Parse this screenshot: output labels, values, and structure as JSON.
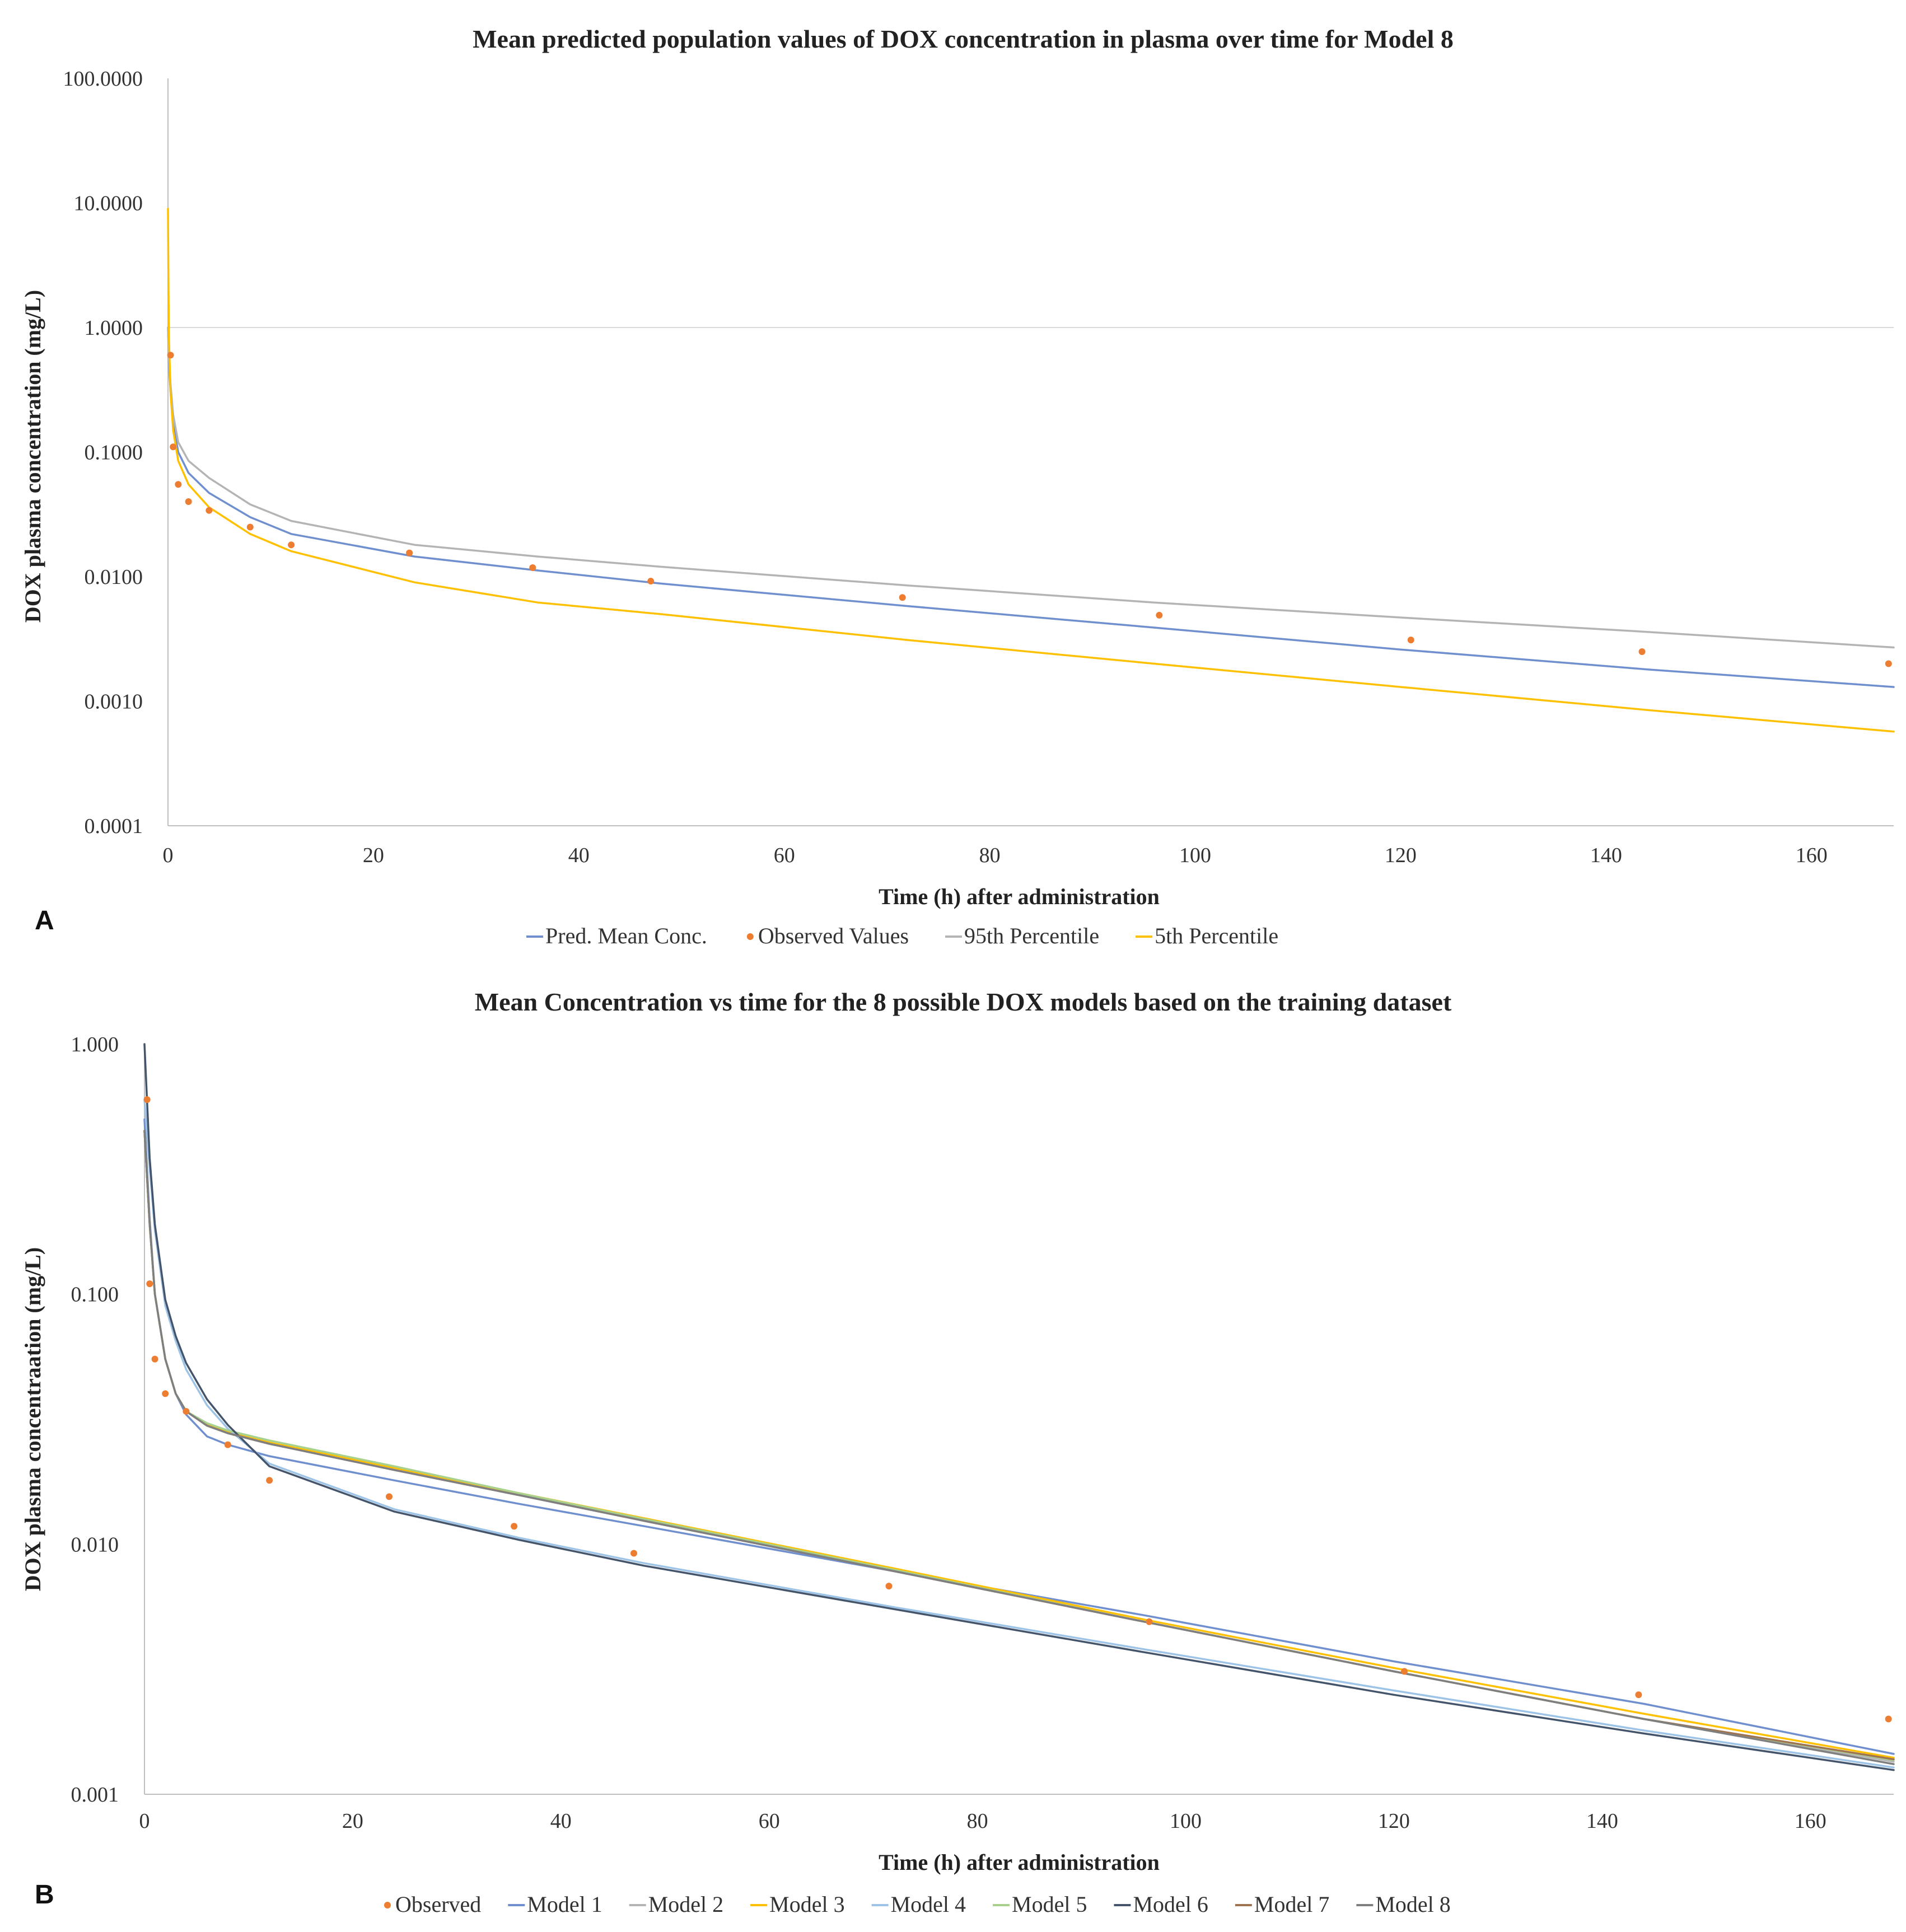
{
  "chart_data": [
    {
      "type": "line",
      "panel": "A",
      "title": "Mean predicted population values of DOX concentration in plasma over time for Model 8",
      "xlabel": "Time (h) after administration",
      "ylabel": "DOX plasma concentration (mg/L)",
      "yscale": "log",
      "ylim": [
        0.0001,
        100
      ],
      "xlim": [
        0,
        168
      ],
      "xticks": [
        0,
        20,
        40,
        60,
        80,
        100,
        120,
        140,
        160
      ],
      "xtick_labels": [
        "0",
        "20",
        "40",
        "60",
        "80",
        "100",
        "120",
        "140",
        "160"
      ],
      "yticks": [
        0.0001,
        0.001,
        0.01,
        0.1,
        1,
        10,
        100
      ],
      "ytick_labels": [
        "0.0001",
        "0.0010",
        "0.0100",
        "0.1000",
        "1.0000",
        "10.0000",
        "100.0000"
      ],
      "gridlines_y": [
        1
      ],
      "legend_position": "bottom",
      "series": [
        {
          "name": "Pred. Mean Conc.",
          "kind": "line",
          "color": "#6f8fcf",
          "x": [
            0,
            0.1,
            0.25,
            0.5,
            1,
            2,
            4,
            8,
            12,
            24,
            36,
            48,
            72,
            96,
            120,
            144,
            168
          ],
          "y": [
            1.0,
            0.5,
            0.3,
            0.17,
            0.1,
            0.068,
            0.047,
            0.03,
            0.022,
            0.0145,
            0.0112,
            0.0088,
            0.0058,
            0.0039,
            0.0026,
            0.0018,
            0.0013
          ]
        },
        {
          "name": "Observed Values",
          "kind": "scatter",
          "color": "#ed7d31",
          "x": [
            0.25,
            0.5,
            1,
            2,
            4,
            8,
            12,
            23.5,
            35.5,
            47,
            71.5,
            96.5,
            121,
            143.5,
            167.5
          ],
          "y": [
            0.6,
            0.11,
            0.055,
            0.04,
            0.034,
            0.025,
            0.018,
            0.0155,
            0.0118,
            0.0092,
            0.0068,
            0.0049,
            0.0031,
            0.0025,
            0.002
          ]
        },
        {
          "name": "95th Percentile",
          "kind": "line",
          "color": "#b4b4b4",
          "x": [
            0,
            0.1,
            0.25,
            0.5,
            1,
            2,
            4,
            8,
            12,
            24,
            36,
            48,
            72,
            96,
            120,
            144,
            168
          ],
          "y": [
            1.0,
            0.55,
            0.35,
            0.2,
            0.12,
            0.085,
            0.062,
            0.038,
            0.028,
            0.018,
            0.0145,
            0.012,
            0.0085,
            0.0062,
            0.0047,
            0.0036,
            0.0027
          ]
        },
        {
          "name": "5th Percentile",
          "kind": "line",
          "color": "#ffc000",
          "x": [
            0,
            0.05,
            0.1,
            0.25,
            0.5,
            1,
            2,
            4,
            8,
            12,
            24,
            36,
            48,
            72,
            96,
            120,
            144,
            168
          ],
          "y": [
            9.0,
            2.0,
            0.8,
            0.3,
            0.15,
            0.085,
            0.055,
            0.036,
            0.022,
            0.016,
            0.009,
            0.0062,
            0.005,
            0.0031,
            0.002,
            0.0013,
            0.00085,
            0.00057
          ]
        }
      ]
    },
    {
      "type": "line",
      "panel": "B",
      "title": "Mean Concentration vs time for the 8 possible DOX models based on the training dataset",
      "xlabel": "Time (h) after administration",
      "ylabel": "DOX plasma concentraation (mg/L)",
      "yscale": "log",
      "ylim": [
        0.001,
        1
      ],
      "xlim": [
        0,
        168
      ],
      "xticks": [
        0,
        20,
        40,
        60,
        80,
        100,
        120,
        140,
        160
      ],
      "xtick_labels": [
        "0",
        "20",
        "40",
        "60",
        "80",
        "100",
        "120",
        "140",
        "160"
      ],
      "yticks": [
        0.001,
        0.01,
        0.1,
        1
      ],
      "ytick_labels": [
        "0.001",
        "0.010",
        "0.100",
        "1.000"
      ],
      "legend_position": "bottom",
      "series": [
        {
          "name": "Observed",
          "kind": "scatter",
          "color": "#ed7d31",
          "x": [
            0.25,
            0.5,
            1,
            2,
            4,
            8,
            12,
            23.5,
            35.5,
            47,
            71.5,
            96.5,
            121,
            143.5,
            167.5
          ],
          "y": [
            0.6,
            0.11,
            0.055,
            0.04,
            0.034,
            0.025,
            0.018,
            0.0155,
            0.0118,
            0.0092,
            0.0068,
            0.0049,
            0.0031,
            0.0025,
            0.002
          ]
        },
        {
          "name": "Model 1",
          "kind": "line",
          "color": "#6f8fcf",
          "x": [
            0,
            0.5,
            1,
            2,
            3,
            4,
            6,
            8,
            12,
            24,
            36,
            48,
            72,
            96,
            120,
            144,
            168
          ],
          "y": [
            0.5,
            0.2,
            0.1,
            0.055,
            0.04,
            0.033,
            0.027,
            0.025,
            0.0225,
            0.018,
            0.0145,
            0.0118,
            0.0078,
            0.0052,
            0.0034,
            0.0023,
            0.00145
          ]
        },
        {
          "name": "Model 2",
          "kind": "line",
          "color": "#b4b4b4",
          "x": [
            0,
            0.5,
            1,
            2,
            3,
            4,
            6,
            8,
            12,
            24,
            36,
            48,
            72,
            96,
            120,
            144,
            168
          ],
          "y": [
            0.45,
            0.19,
            0.1,
            0.055,
            0.04,
            0.034,
            0.03,
            0.028,
            0.0255,
            0.02,
            0.0158,
            0.0124,
            0.0078,
            0.0049,
            0.0031,
            0.002,
            0.00135
          ]
        },
        {
          "name": "Model 3",
          "kind": "line",
          "color": "#ffc000",
          "x": [
            0,
            0.5,
            1,
            2,
            3,
            4,
            6,
            8,
            12,
            24,
            36,
            48,
            72,
            96,
            120,
            144,
            168
          ],
          "y": [
            0.45,
            0.19,
            0.1,
            0.055,
            0.04,
            0.034,
            0.03,
            0.028,
            0.0255,
            0.0202,
            0.016,
            0.0127,
            0.008,
            0.005,
            0.0032,
            0.0021,
            0.0014
          ]
        },
        {
          "name": "Model 4",
          "kind": "line",
          "color": "#9dc3e6",
          "x": [
            0,
            0.5,
            1,
            2,
            3,
            4,
            6,
            8,
            12,
            24,
            36,
            48,
            72,
            96,
            120,
            144,
            168
          ],
          "y": [
            0.6,
            0.32,
            0.18,
            0.09,
            0.065,
            0.05,
            0.036,
            0.029,
            0.021,
            0.0138,
            0.0106,
            0.0084,
            0.0056,
            0.0038,
            0.0026,
            0.0018,
            0.00128
          ]
        },
        {
          "name": "Model 5",
          "kind": "line",
          "color": "#a9d18e",
          "x": [
            0,
            0.5,
            1,
            2,
            3,
            4,
            6,
            8,
            12,
            24,
            36,
            48,
            72,
            96,
            120,
            144,
            168
          ],
          "y": [
            0.45,
            0.19,
            0.1,
            0.055,
            0.04,
            0.034,
            0.0305,
            0.0285,
            0.026,
            0.0205,
            0.016,
            0.0126,
            0.0079,
            0.0049,
            0.0031,
            0.002,
            0.00137
          ]
        },
        {
          "name": "Model 6",
          "kind": "line",
          "color": "#44546a",
          "x": [
            0,
            0.5,
            1,
            2,
            3,
            4,
            6,
            8,
            12,
            24,
            36,
            48,
            72,
            96,
            120,
            144,
            168
          ],
          "y": [
            1.0,
            0.35,
            0.19,
            0.095,
            0.068,
            0.053,
            0.038,
            0.03,
            0.0205,
            0.0135,
            0.0104,
            0.0082,
            0.0055,
            0.0037,
            0.0025,
            0.00175,
            0.00125
          ]
        },
        {
          "name": "Model 7",
          "kind": "line",
          "color": "#9e7451",
          "x": [
            0,
            0.5,
            1,
            2,
            3,
            4,
            6,
            8,
            12,
            24,
            36,
            48,
            72,
            96,
            120,
            144,
            168
          ],
          "y": [
            0.45,
            0.19,
            0.1,
            0.055,
            0.04,
            0.034,
            0.0298,
            0.0278,
            0.0252,
            0.0198,
            0.0157,
            0.0124,
            0.0078,
            0.0049,
            0.0031,
            0.002,
            0.00138
          ]
        },
        {
          "name": "Model 8",
          "kind": "line",
          "color": "#7f7f7f",
          "x": [
            0,
            0.5,
            1,
            2,
            3,
            4,
            6,
            8,
            12,
            24,
            36,
            48,
            72,
            96,
            120,
            144,
            168
          ],
          "y": [
            0.45,
            0.19,
            0.1,
            0.055,
            0.04,
            0.034,
            0.0298,
            0.0278,
            0.0252,
            0.0198,
            0.0157,
            0.0124,
            0.0078,
            0.0049,
            0.0031,
            0.002,
            0.00132
          ]
        }
      ]
    }
  ]
}
